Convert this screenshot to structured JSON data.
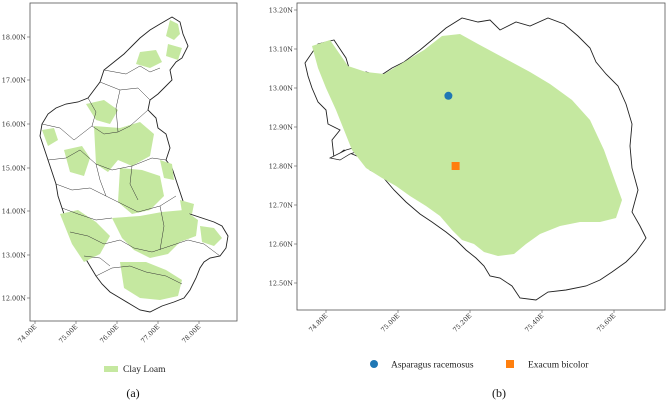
{
  "map_a": {
    "lat_ticks": [
      "12.00N",
      "13.00N",
      "14.00N",
      "15.00N",
      "16.00N",
      "17.00N",
      "18.00N"
    ],
    "lon_ticks": [
      "74.00E",
      "75.00E",
      "76.00E",
      "77.00E",
      "78.00E"
    ],
    "legend": {
      "label": "Clay Loam",
      "color": "#c5e8a0"
    },
    "caption": "(a)"
  },
  "map_b": {
    "lat_ticks": [
      "13.20N",
      "13.10N",
      "13.00N",
      "12.90N",
      "12.80N",
      "12.70N",
      "12.60N",
      "12.50N"
    ],
    "lon_ticks": [
      "74.80E",
      "75.00E",
      "75.20E",
      "75.40E",
      "75.60E"
    ],
    "fill_color": "#c5e8a0",
    "points": [
      {
        "name": "Asparagus racemosus",
        "marker": "circle",
        "color": "#1f77b4",
        "lon": 75.14,
        "lat": 12.98
      },
      {
        "name": "Exacum bicolor",
        "marker": "square",
        "color": "#ff7f0e",
        "lon": 75.16,
        "lat": 12.8
      }
    ],
    "caption": "(b)"
  }
}
